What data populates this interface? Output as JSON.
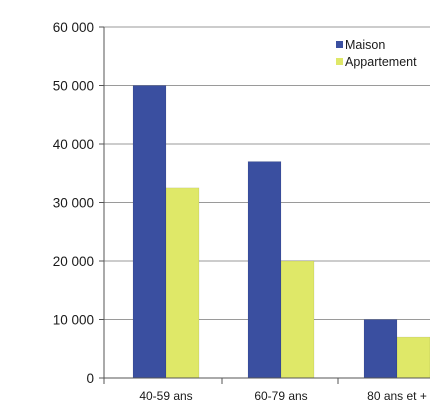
{
  "chart_data": {
    "type": "bar",
    "categories": [
      "40-59 ans",
      "60-79 ans",
      "80 ans et +"
    ],
    "series": [
      {
        "name": "Maison",
        "values": [
          50000,
          37000,
          10000
        ],
        "color": "#3a4fa0"
      },
      {
        "name": "Appartement",
        "values": [
          32500,
          20000,
          7000
        ],
        "color": "#dfe868"
      }
    ],
    "y_tick_labels": [
      "0",
      "10 000",
      "20 000",
      "30 000",
      "40 000",
      "50 000",
      "60 000"
    ],
    "ylim": [
      0,
      60000
    ],
    "grid": true,
    "legend_position": "top-right",
    "title": "",
    "xlabel": "",
    "ylabel": ""
  },
  "colors": {
    "grid": "#9a9a9a",
    "axis": "#555555",
    "plot_border": "#9a9a9a"
  }
}
